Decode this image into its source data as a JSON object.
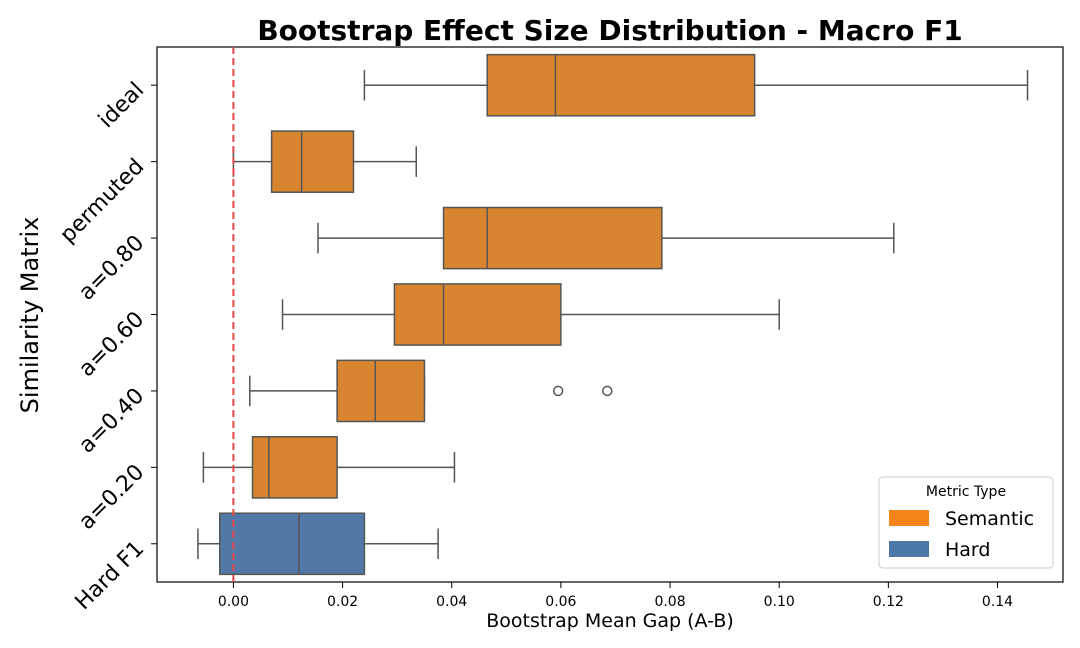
{
  "chart_data": {
    "type": "boxplot",
    "orientation": "horizontal",
    "title": "Bootstrap Effect Size Distribution - Macro F1",
    "xlabel": "Bootstrap Mean Gap (A-B)",
    "ylabel": "Similarity Matrix",
    "xlim": [
      -0.014,
      0.152
    ],
    "xticks": [
      0.0,
      0.02,
      0.04,
      0.06,
      0.08,
      0.1,
      0.12,
      0.14
    ],
    "xtick_labels": [
      "0.00",
      "0.02",
      "0.04",
      "0.06",
      "0.08",
      "0.10",
      "0.12",
      "0.14"
    ],
    "reference_line": {
      "x": 0.0,
      "style": "dashed",
      "color": "#e8474a"
    },
    "grid": false,
    "legend": {
      "title": "Metric Type",
      "position": "lower-right",
      "entries": [
        {
          "label": "Semantic",
          "color": "#f58518"
        },
        {
          "label": "Hard",
          "color": "#4c78a8"
        }
      ]
    },
    "boxes": [
      {
        "category": "ideal",
        "type": "Semantic",
        "color": "#d98530",
        "whisker_low": 0.024,
        "q1": 0.0465,
        "median": 0.059,
        "q3": 0.0955,
        "whisker_high": 0.1455,
        "outliers": []
      },
      {
        "category": "permuted",
        "type": "Semantic",
        "color": "#d98530",
        "whisker_low": 0.0,
        "q1": 0.007,
        "median": 0.0125,
        "q3": 0.022,
        "whisker_high": 0.0335,
        "outliers": []
      },
      {
        "category": "a=0.80",
        "type": "Semantic",
        "color": "#d98530",
        "whisker_low": 0.0155,
        "q1": 0.0385,
        "median": 0.0465,
        "q3": 0.0785,
        "whisker_high": 0.121,
        "outliers": []
      },
      {
        "category": "a=0.60",
        "type": "Semantic",
        "color": "#d98530",
        "whisker_low": 0.009,
        "q1": 0.0295,
        "median": 0.0385,
        "q3": 0.06,
        "whisker_high": 0.1,
        "outliers": []
      },
      {
        "category": "a=0.40",
        "type": "Semantic",
        "color": "#d98530",
        "whisker_low": 0.003,
        "q1": 0.019,
        "median": 0.026,
        "q3": 0.035,
        "whisker_high": 0.035,
        "outliers": [
          0.0595,
          0.0685
        ]
      },
      {
        "category": "a=0.20",
        "type": "Semantic",
        "color": "#d98530",
        "whisker_low": -0.0055,
        "q1": 0.0035,
        "median": 0.0065,
        "q3": 0.019,
        "whisker_high": 0.0405,
        "outliers": []
      },
      {
        "category": "Hard F1",
        "type": "Hard",
        "color": "#5178a6",
        "whisker_low": -0.0065,
        "q1": -0.0025,
        "median": 0.012,
        "q3": 0.024,
        "whisker_high": 0.0375,
        "outliers": []
      }
    ]
  }
}
